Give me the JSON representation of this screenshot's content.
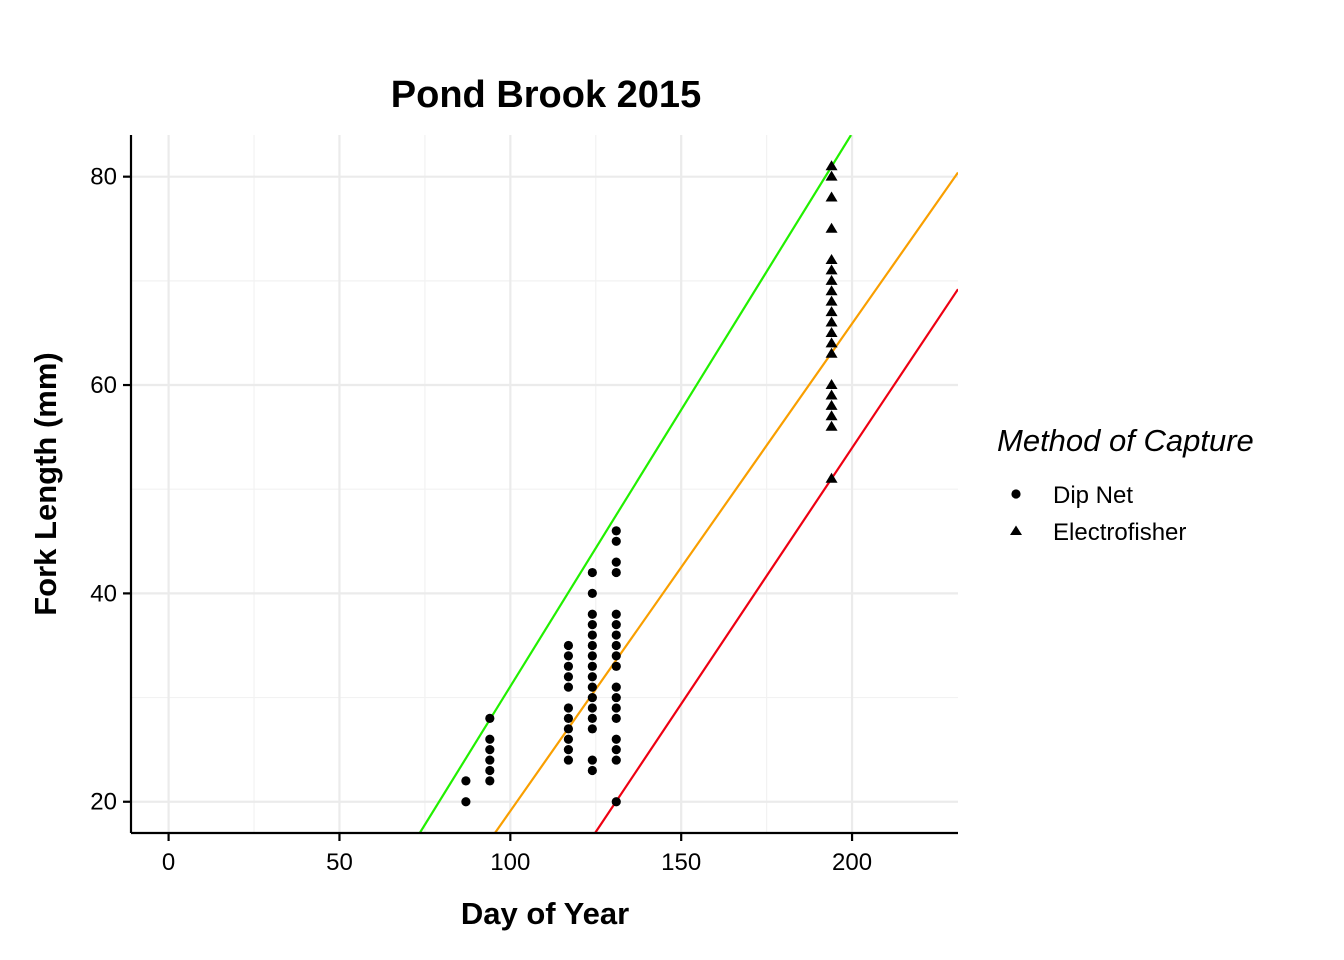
{
  "chart_data": {
    "type": "scatter",
    "title": "Pond Brook 2015",
    "xlabel": "Day of Year",
    "ylabel": "Fork Length (mm)",
    "xlim": [
      -11,
      231
    ],
    "ylim": [
      17,
      84
    ],
    "x_ticks": [
      0,
      50,
      100,
      150,
      200
    ],
    "y_ticks": [
      20,
      40,
      60,
      80
    ],
    "grid": true,
    "legend": {
      "title": "Method of Capture",
      "placement": "right",
      "entries": [
        {
          "name": "Dip Net",
          "shape": "circle"
        },
        {
          "name": "Electrofisher",
          "shape": "triangle"
        }
      ]
    },
    "series": [
      {
        "name": "Dip Net",
        "shape": "circle",
        "points": [
          [
            87,
            20
          ],
          [
            87,
            22
          ],
          [
            94,
            22
          ],
          [
            94,
            23
          ],
          [
            94,
            24
          ],
          [
            94,
            25
          ],
          [
            94,
            26
          ],
          [
            94,
            28
          ],
          [
            117,
            24
          ],
          [
            117,
            25
          ],
          [
            117,
            26
          ],
          [
            117,
            27
          ],
          [
            117,
            28
          ],
          [
            117,
            29
          ],
          [
            117,
            31
          ],
          [
            117,
            32
          ],
          [
            117,
            33
          ],
          [
            117,
            34
          ],
          [
            117,
            35
          ],
          [
            124,
            23
          ],
          [
            124,
            24
          ],
          [
            124,
            27
          ],
          [
            124,
            28
          ],
          [
            124,
            29
          ],
          [
            124,
            30
          ],
          [
            124,
            31
          ],
          [
            124,
            32
          ],
          [
            124,
            33
          ],
          [
            124,
            34
          ],
          [
            124,
            35
          ],
          [
            124,
            36
          ],
          [
            124,
            37
          ],
          [
            124,
            38
          ],
          [
            124,
            40
          ],
          [
            124,
            42
          ],
          [
            131,
            20
          ],
          [
            131,
            24
          ],
          [
            131,
            25
          ],
          [
            131,
            26
          ],
          [
            131,
            28
          ],
          [
            131,
            29
          ],
          [
            131,
            30
          ],
          [
            131,
            31
          ],
          [
            131,
            33
          ],
          [
            131,
            34
          ],
          [
            131,
            35
          ],
          [
            131,
            36
          ],
          [
            131,
            37
          ],
          [
            131,
            38
          ],
          [
            131,
            42
          ],
          [
            131,
            43
          ],
          [
            131,
            45
          ],
          [
            131,
            46
          ]
        ]
      },
      {
        "name": "Electrofisher",
        "shape": "triangle",
        "points": [
          [
            194,
            51
          ],
          [
            194,
            56
          ],
          [
            194,
            57
          ],
          [
            194,
            58
          ],
          [
            194,
            59
          ],
          [
            194,
            60
          ],
          [
            194,
            63
          ],
          [
            194,
            64
          ],
          [
            194,
            65
          ],
          [
            194,
            66
          ],
          [
            194,
            67
          ],
          [
            194,
            68
          ],
          [
            194,
            69
          ],
          [
            194,
            70
          ],
          [
            194,
            71
          ],
          [
            194,
            72
          ],
          [
            194,
            75
          ],
          [
            194,
            78
          ],
          [
            194,
            80
          ],
          [
            194,
            81
          ]
        ]
      }
    ],
    "lines": [
      {
        "color": "#22f000",
        "from": [
          73.5,
          17
        ],
        "to": [
          199.7,
          84
        ]
      },
      {
        "color": "#f99f00",
        "from": [
          95.5,
          17
        ],
        "to": [
          231,
          80.4
        ]
      },
      {
        "color": "#ee0012",
        "from": [
          124.8,
          17
        ],
        "to": [
          231,
          69.2
        ]
      }
    ]
  }
}
